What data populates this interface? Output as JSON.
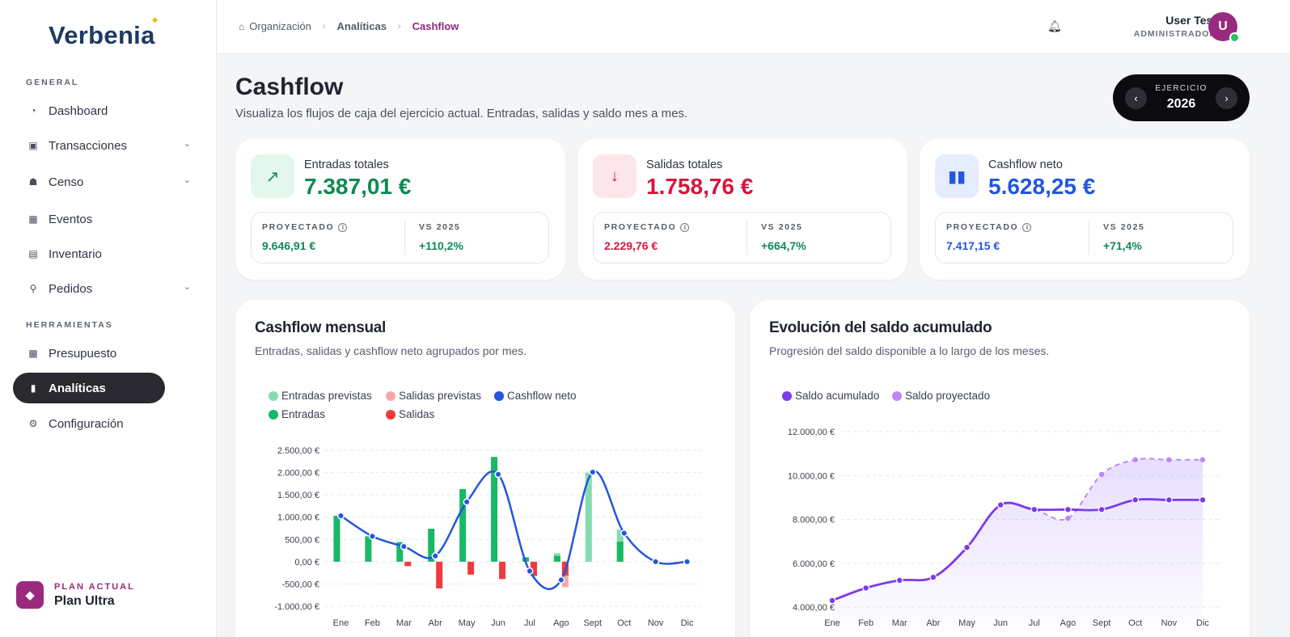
{
  "sidebar": {
    "logo": "Verbenia",
    "section_general": "GENERAL",
    "section_tools": "HERRAMIENTAS",
    "items": [
      {
        "label": "Dashboard"
      },
      {
        "label": "Transacciones"
      },
      {
        "label": "Censo"
      },
      {
        "label": "Eventos"
      },
      {
        "label": "Inventario"
      },
      {
        "label": "Pedidos"
      },
      {
        "label": "Presupuesto"
      },
      {
        "label": "Analíticas"
      },
      {
        "label": "Configuración"
      }
    ],
    "plan_label": "PLAN ACTUAL",
    "plan_name": "Plan Ultra"
  },
  "header": {
    "breadcrumb": [
      "Organización",
      "Analíticas",
      "Cashflow"
    ],
    "user_name": "User Test",
    "user_role": "ADMINISTRADOR",
    "avatar_initial": "U"
  },
  "page": {
    "title": "Cashflow",
    "subtitle": "Visualiza los flujos de caja del ejercicio actual. Entradas, salidas y saldo mes a mes.",
    "ejercicio_label": "EJERCICIO",
    "ejercicio_year": "2026"
  },
  "kpis": [
    {
      "label": "Entradas totales",
      "value": "7.387,01 €",
      "projected_label": "PROYECTADO",
      "projected": "9.646,91 €",
      "vs_label": "VS 2025",
      "vs": "+110,2%"
    },
    {
      "label": "Salidas totales",
      "value": "1.758,76 €",
      "projected_label": "PROYECTADO",
      "projected": "2.229,76 €",
      "vs_label": "VS 2025",
      "vs": "+664,7%"
    },
    {
      "label": "Cashflow neto",
      "value": "5.628,25 €",
      "projected_label": "PROYECTADO",
      "projected": "7.417,15 €",
      "vs_label": "VS 2025",
      "vs": "+71,4%"
    }
  ],
  "colors": {
    "green": "#0f8a52",
    "red": "#d6163e",
    "blue": "#2456de",
    "purple": "#7c3aed",
    "brand": "#9a2a7e"
  },
  "chart_data": [
    {
      "type": "bar",
      "title": "Cashflow mensual",
      "subtitle": "Entradas, salidas y cashflow neto agrupados por mes.",
      "categories": [
        "Ene",
        "Feb",
        "Mar",
        "Abr",
        "May",
        "Jun",
        "Jul",
        "Ago",
        "Sept",
        "Oct",
        "Nov",
        "Dic"
      ],
      "ylim": [
        -1000,
        2500
      ],
      "yticks": [
        "2.500,00 €",
        "2.000,00 €",
        "1.500,00 €",
        "1.000,00 €",
        "500,00 €",
        "0,00 €",
        "-500,00 €",
        "-1.000,00 €"
      ],
      "series": [
        {
          "name": "Entradas previstas",
          "color": "#86dcb0",
          "values": [
            0,
            0,
            0,
            0,
            0,
            0,
            0,
            190,
            2000,
            720,
            0,
            0
          ]
        },
        {
          "name": "Salidas previstas",
          "color": "#f6a8a8",
          "values": [
            0,
            0,
            0,
            0,
            0,
            0,
            0,
            -570,
            0,
            0,
            0,
            0
          ]
        },
        {
          "name": "Cashflow neto",
          "color": "#2456de",
          "values": [
            1030,
            570,
            340,
            130,
            1340,
            1960,
            -210,
            -410,
            2010,
            640,
            0,
            0
          ]
        },
        {
          "name": "Entradas",
          "color": "#17b866",
          "values": [
            1030,
            570,
            440,
            740,
            1630,
            2350,
            100,
            130,
            0,
            450,
            0,
            0
          ]
        },
        {
          "name": "Salidas",
          "color": "#ef3b3b",
          "values": [
            0,
            0,
            -100,
            -600,
            -290,
            -390,
            -320,
            -310,
            0,
            0,
            0,
            0
          ]
        }
      ]
    },
    {
      "type": "line",
      "title": "Evolución del saldo acumulado",
      "subtitle": "Progresión del saldo disponible a lo largo de los meses.",
      "categories": [
        "Ene",
        "Feb",
        "Mar",
        "Abr",
        "May",
        "Jun",
        "Jul",
        "Ago",
        "Sept",
        "Oct",
        "Nov",
        "Dic"
      ],
      "ylim": [
        4000,
        12000
      ],
      "yticks": [
        "12.000,00 €",
        "10.000,00 €",
        "8.000,00 €",
        "6.000,00 €",
        "4.000,00 €"
      ],
      "series": [
        {
          "name": "Saldo acumulado",
          "color": "#7c3aed",
          "values": [
            4300,
            4870,
            5220,
            5360,
            6720,
            8660,
            8450,
            8450,
            8450,
            8890,
            8890,
            8890
          ]
        },
        {
          "name": "Saldo proyectado",
          "color": "#c084fc",
          "values": [
            4300,
            4870,
            5220,
            5360,
            6720,
            8660,
            8450,
            8050,
            10050,
            10720,
            10720,
            10720
          ]
        }
      ]
    }
  ]
}
